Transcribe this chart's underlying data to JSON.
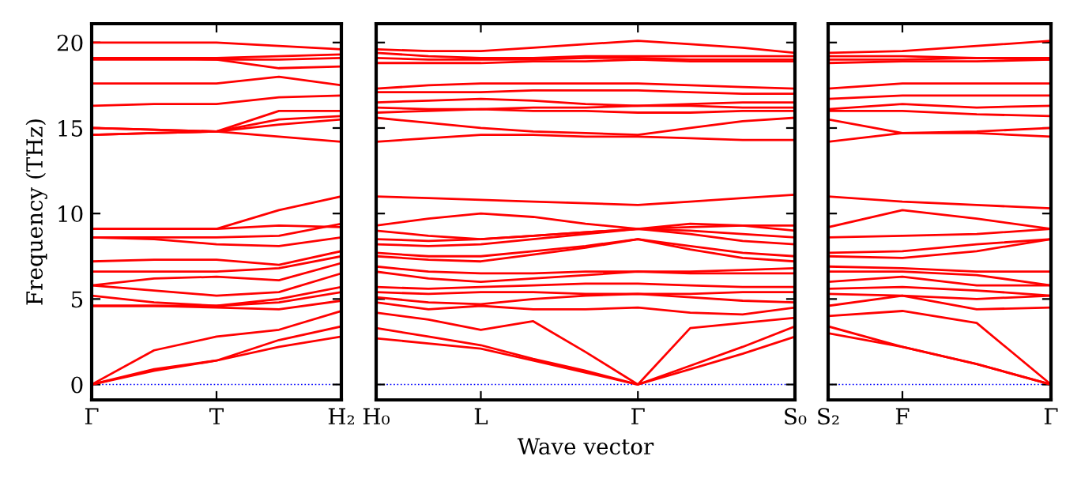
{
  "chart_data": [
    {
      "type": "line",
      "ylabel": "Frequency (THz)",
      "categories": [
        "Γ",
        null,
        "T",
        null,
        "H₂"
      ],
      "ylim": [
        -0.9,
        21.1
      ],
      "yticks": [
        0,
        5,
        10,
        15,
        20
      ],
      "grid": false,
      "line_style": "solid",
      "marker": "none",
      "ref_lines": [
        {
          "axis": "y",
          "value": 0,
          "color": "#0000ff",
          "line_style": "dotted"
        }
      ],
      "series": [
        {
          "color": "#ff0000",
          "values": [
            0,
            0.8,
            1.4,
            2.2,
            2.8
          ]
        },
        {
          "color": "#ff0000",
          "values": [
            0,
            0.9,
            1.4,
            2.6,
            3.4
          ]
        },
        {
          "color": "#ff0000",
          "values": [
            0,
            2.0,
            2.8,
            3.2,
            4.3
          ]
        },
        {
          "color": "#ff0000",
          "values": [
            4.6,
            4.6,
            4.5,
            4.4,
            4.9
          ]
        },
        {
          "color": "#ff0000",
          "values": [
            4.6,
            4.6,
            4.6,
            4.8,
            5.4
          ]
        },
        {
          "color": "#ff0000",
          "values": [
            5.2,
            4.8,
            4.6,
            5.0,
            5.7
          ]
        },
        {
          "color": "#ff0000",
          "values": [
            5.8,
            5.5,
            5.2,
            5.4,
            6.5
          ]
        },
        {
          "color": "#ff0000",
          "values": [
            5.8,
            6.2,
            6.3,
            6.1,
            7.1
          ]
        },
        {
          "color": "#ff0000",
          "values": [
            6.6,
            6.6,
            6.6,
            6.8,
            7.5
          ]
        },
        {
          "color": "#ff0000",
          "values": [
            7.2,
            7.3,
            7.3,
            7.0,
            7.8
          ]
        },
        {
          "color": "#ff0000",
          "values": [
            8.6,
            8.5,
            8.2,
            8.1,
            8.6
          ]
        },
        {
          "color": "#ff0000",
          "values": [
            8.6,
            8.6,
            8.6,
            8.7,
            9.4
          ]
        },
        {
          "color": "#ff0000",
          "values": [
            9.1,
            9.1,
            9.1,
            9.3,
            9.2
          ]
        },
        {
          "color": "#ff0000",
          "values": [
            9.1,
            9.1,
            9.1,
            10.2,
            11.0
          ]
        },
        {
          "color": "#ff0000",
          "values": [
            14.6,
            14.7,
            14.8,
            14.5,
            14.2
          ]
        },
        {
          "color": "#ff0000",
          "values": [
            14.6,
            14.7,
            14.8,
            15.2,
            15.5
          ]
        },
        {
          "color": "#ff0000",
          "values": [
            15.0,
            14.9,
            14.8,
            15.5,
            15.7
          ]
        },
        {
          "color": "#ff0000",
          "values": [
            15.0,
            14.9,
            14.8,
            16.0,
            16.0
          ]
        },
        {
          "color": "#ff0000",
          "values": [
            16.3,
            16.4,
            16.4,
            16.8,
            16.9
          ]
        },
        {
          "color": "#ff0000",
          "values": [
            17.6,
            17.6,
            17.6,
            18.0,
            17.5
          ]
        },
        {
          "color": "#ff0000",
          "values": [
            19.0,
            19.0,
            19.0,
            18.5,
            18.6
          ]
        },
        {
          "color": "#ff0000",
          "values": [
            19.1,
            19.1,
            19.0,
            19.0,
            19.1
          ]
        },
        {
          "color": "#ff0000",
          "values": [
            19.1,
            19.1,
            19.1,
            19.2,
            19.3
          ]
        },
        {
          "color": "#ff0000",
          "values": [
            20.0,
            20.0,
            20.0,
            19.8,
            19.6
          ]
        }
      ]
    },
    {
      "type": "line",
      "xlabel": "Wave vector",
      "categories": [
        "H₀",
        null,
        "L",
        null,
        null,
        "Γ",
        null,
        null,
        "S₀"
      ],
      "ylim": [
        -0.9,
        21.1
      ],
      "yticks": [
        0,
        5,
        10,
        15,
        20
      ],
      "tick_labels": "x",
      "grid": false,
      "line_style": "solid",
      "marker": "none",
      "ref_lines": [
        {
          "axis": "y",
          "value": 0,
          "color": "#0000ff",
          "line_style": "dotted"
        }
      ],
      "series": [
        {
          "color": "#ff0000",
          "values": [
            2.7,
            2.4,
            2.1,
            1.4,
            0.7,
            0,
            0.9,
            1.8,
            2.8
          ]
        },
        {
          "color": "#ff0000",
          "values": [
            3.3,
            2.8,
            2.3,
            1.5,
            0.8,
            0,
            1.1,
            2.2,
            3.4
          ]
        },
        {
          "color": "#ff0000",
          "values": [
            4.2,
            3.8,
            3.2,
            3.7,
            1.9,
            0,
            3.3,
            3.6,
            3.9
          ]
        },
        {
          "color": "#ff0000",
          "values": [
            4.8,
            4.4,
            4.6,
            4.4,
            4.4,
            4.5,
            4.2,
            4.1,
            4.5
          ]
        },
        {
          "color": "#ff0000",
          "values": [
            5.1,
            4.8,
            4.7,
            5.0,
            5.2,
            5.3,
            5.1,
            4.9,
            4.8
          ]
        },
        {
          "color": "#ff0000",
          "values": [
            5.4,
            5.3,
            5.4,
            5.4,
            5.3,
            5.3,
            5.3,
            5.4,
            5.4
          ]
        },
        {
          "color": "#ff0000",
          "values": [
            5.7,
            5.6,
            5.7,
            5.8,
            5.9,
            5.9,
            5.8,
            5.7,
            5.7
          ]
        },
        {
          "color": "#ff0000",
          "values": [
            6.6,
            6.2,
            6.0,
            6.2,
            6.4,
            6.6,
            6.5,
            6.5,
            6.5
          ]
        },
        {
          "color": "#ff0000",
          "values": [
            6.9,
            6.6,
            6.5,
            6.5,
            6.6,
            6.6,
            6.6,
            6.7,
            6.8
          ]
        },
        {
          "color": "#ff0000",
          "values": [
            7.5,
            7.3,
            7.2,
            7.6,
            8.0,
            8.5,
            7.9,
            7.4,
            7.2
          ]
        },
        {
          "color": "#ff0000",
          "values": [
            7.7,
            7.5,
            7.5,
            7.8,
            8.1,
            8.5,
            8.1,
            7.7,
            7.5
          ]
        },
        {
          "color": "#ff0000",
          "values": [
            8.2,
            8.1,
            8.2,
            8.5,
            8.8,
            9.1,
            8.8,
            8.4,
            8.2
          ]
        },
        {
          "color": "#ff0000",
          "values": [
            8.5,
            8.4,
            8.5,
            8.7,
            8.9,
            9.1,
            9.0,
            8.8,
            8.6
          ]
        },
        {
          "color": "#ff0000",
          "values": [
            9.0,
            8.7,
            8.5,
            8.7,
            8.9,
            9.1,
            9.4,
            9.3,
            9.0
          ]
        },
        {
          "color": "#ff0000",
          "values": [
            9.3,
            9.7,
            10.0,
            9.8,
            9.4,
            9.1,
            9.2,
            9.3,
            9.3
          ]
        },
        {
          "color": "#ff0000",
          "values": [
            11.0,
            10.9,
            10.8,
            10.7,
            10.6,
            10.5,
            10.7,
            10.9,
            11.1
          ]
        },
        {
          "color": "#ff0000",
          "values": [
            14.2,
            14.4,
            14.6,
            14.6,
            14.5,
            14.5,
            14.4,
            14.3,
            14.3
          ]
        },
        {
          "color": "#ff0000",
          "values": [
            15.6,
            15.3,
            15.0,
            14.8,
            14.7,
            14.6,
            15.0,
            15.4,
            15.6
          ]
        },
        {
          "color": "#ff0000",
          "values": [
            15.9,
            16.0,
            16.1,
            16.0,
            16.0,
            15.9,
            15.9,
            16.0,
            16.0
          ]
        },
        {
          "color": "#ff0000",
          "values": [
            16.2,
            16.1,
            16.1,
            16.2,
            16.2,
            16.3,
            16.3,
            16.2,
            16.2
          ]
        },
        {
          "color": "#ff0000",
          "values": [
            16.5,
            16.6,
            16.7,
            16.6,
            16.4,
            16.3,
            16.4,
            16.5,
            16.5
          ]
        },
        {
          "color": "#ff0000",
          "values": [
            17.1,
            17.1,
            17.1,
            17.2,
            17.2,
            17.2,
            17.1,
            17.0,
            17.0
          ]
        },
        {
          "color": "#ff0000",
          "values": [
            17.3,
            17.5,
            17.6,
            17.6,
            17.6,
            17.6,
            17.5,
            17.4,
            17.3
          ]
        },
        {
          "color": "#ff0000",
          "values": [
            18.8,
            18.8,
            18.8,
            18.9,
            18.9,
            19.0,
            18.9,
            18.9,
            18.9
          ]
        },
        {
          "color": "#ff0000",
          "values": [
            19.1,
            19.0,
            19.0,
            19.0,
            19.1,
            19.1,
            19.0,
            19.0,
            19.0
          ]
        },
        {
          "color": "#ff0000",
          "values": [
            19.4,
            19.2,
            19.1,
            19.1,
            19.2,
            19.2,
            19.2,
            19.2,
            19.2
          ]
        },
        {
          "color": "#ff0000",
          "values": [
            19.6,
            19.5,
            19.5,
            19.7,
            19.9,
            20.1,
            19.9,
            19.7,
            19.4
          ]
        }
      ]
    },
    {
      "type": "line",
      "categories": [
        "S₂",
        "F",
        null,
        "Γ"
      ],
      "ylim": [
        -0.9,
        21.1
      ],
      "yticks": [
        0,
        5,
        10,
        15,
        20
      ],
      "tick_labels": "x",
      "grid": false,
      "line_style": "solid",
      "marker": "none",
      "ref_lines": [
        {
          "axis": "y",
          "value": 0,
          "color": "#0000ff",
          "line_style": "dotted"
        }
      ],
      "series": [
        {
          "color": "#ff0000",
          "values": [
            3.0,
            2.2,
            1.2,
            0
          ]
        },
        {
          "color": "#ff0000",
          "values": [
            3.4,
            2.2,
            1.2,
            0
          ]
        },
        {
          "color": "#ff0000",
          "values": [
            4.0,
            4.3,
            3.6,
            0
          ]
        },
        {
          "color": "#ff0000",
          "values": [
            4.6,
            5.2,
            4.4,
            4.5
          ]
        },
        {
          "color": "#ff0000",
          "values": [
            5.3,
            5.2,
            5.0,
            5.2
          ]
        },
        {
          "color": "#ff0000",
          "values": [
            5.6,
            5.7,
            5.5,
            5.2
          ]
        },
        {
          "color": "#ff0000",
          "values": [
            6.0,
            6.3,
            5.8,
            5.8
          ]
        },
        {
          "color": "#ff0000",
          "values": [
            6.6,
            6.6,
            6.4,
            5.8
          ]
        },
        {
          "color": "#ff0000",
          "values": [
            6.9,
            6.8,
            6.6,
            6.6
          ]
        },
        {
          "color": "#ff0000",
          "values": [
            7.5,
            7.4,
            7.8,
            8.5
          ]
        },
        {
          "color": "#ff0000",
          "values": [
            7.7,
            7.8,
            8.2,
            8.5
          ]
        },
        {
          "color": "#ff0000",
          "values": [
            8.6,
            8.7,
            8.8,
            9.1
          ]
        },
        {
          "color": "#ff0000",
          "values": [
            9.2,
            10.2,
            9.7,
            9.1
          ]
        },
        {
          "color": "#ff0000",
          "values": [
            11.0,
            10.7,
            10.5,
            10.3
          ]
        },
        {
          "color": "#ff0000",
          "values": [
            14.2,
            14.7,
            14.7,
            14.5
          ]
        },
        {
          "color": "#ff0000",
          "values": [
            15.5,
            14.7,
            14.8,
            15.0
          ]
        },
        {
          "color": "#ff0000",
          "values": [
            16.0,
            16.0,
            15.8,
            15.7
          ]
        },
        {
          "color": "#ff0000",
          "values": [
            16.1,
            16.4,
            16.2,
            16.3
          ]
        },
        {
          "color": "#ff0000",
          "values": [
            16.7,
            16.9,
            16.9,
            16.9
          ]
        },
        {
          "color": "#ff0000",
          "values": [
            17.3,
            17.6,
            17.6,
            17.6
          ]
        },
        {
          "color": "#ff0000",
          "values": [
            18.8,
            18.9,
            18.9,
            19.0
          ]
        },
        {
          "color": "#ff0000",
          "values": [
            19.0,
            19.0,
            19.1,
            19.0
          ]
        },
        {
          "color": "#ff0000",
          "values": [
            19.2,
            19.2,
            19.1,
            19.1
          ]
        },
        {
          "color": "#ff0000",
          "values": [
            19.4,
            19.5,
            19.8,
            20.1
          ]
        }
      ]
    }
  ]
}
